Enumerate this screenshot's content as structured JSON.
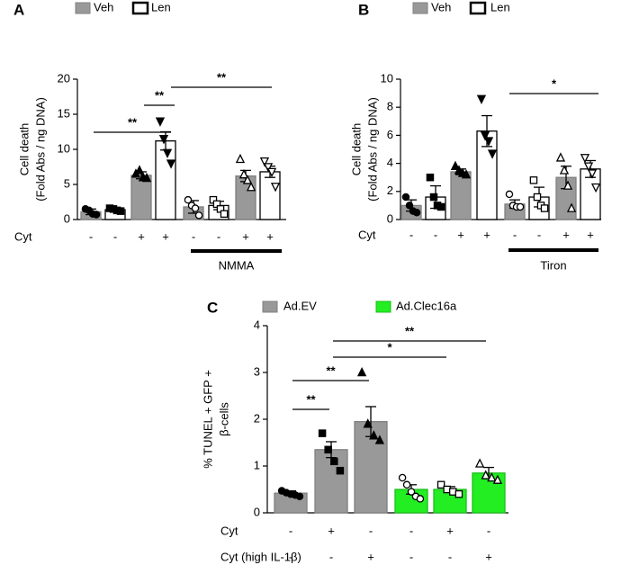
{
  "chart_data": [
    {
      "type": "bar",
      "panel": "A",
      "ylabel": [
        "Cell death",
        "(Fold Abs / ng DNA)"
      ],
      "ylim": [
        0,
        20
      ],
      "yticks": [
        0,
        5,
        10,
        15,
        20
      ],
      "categories": [
        null,
        null,
        null,
        null,
        null,
        null,
        null,
        null
      ],
      "series": [
        {
          "name": "Veh",
          "color": "#999999",
          "edgecolor": "#808080",
          "values": [
            1.1,
            null,
            6.3,
            null,
            1.8,
            null,
            6.2,
            null
          ],
          "errors": [
            0.4,
            null,
            0.5,
            null,
            0.9,
            null,
            0.8,
            null
          ],
          "points": [
            [
              1.5,
              1.3,
              0.8,
              0.7
            ],
            null,
            [
              6.5,
              7.0,
              6.0,
              5.9
            ],
            null,
            [
              2.8,
              2.0,
              1.6,
              0.6
            ],
            null,
            [
              8.6,
              6.4,
              5.6,
              4.6
            ],
            null
          ]
        },
        {
          "name": "Len",
          "color": "#ffffff",
          "edgecolor": "#000000",
          "values": [
            null,
            1.4,
            null,
            11.2,
            null,
            2.0,
            null,
            6.8
          ],
          "errors": [
            null,
            0.2,
            null,
            1.3,
            null,
            0.6,
            null,
            0.8
          ],
          "points": [
            null,
            [
              1.6,
              1.5,
              1.3,
              1.2
            ],
            null,
            [
              14.0,
              11.5,
              9.5,
              8.0
            ],
            null,
            [
              2.8,
              2.2,
              1.5,
              0.8
            ],
            null,
            [
              8.3,
              7.5,
              6.8,
              4.7
            ]
          ]
        }
      ],
      "rows": [
        {
          "label": "Cyt",
          "values": [
            "-",
            "-",
            "+",
            "+",
            "-",
            "-",
            "+",
            "+"
          ]
        }
      ],
      "group_label": "NMMA",
      "annotations": [
        "**",
        "**",
        "**"
      ]
    },
    {
      "type": "bar",
      "panel": "B",
      "ylabel": [
        "Cell death",
        "(Fold Abs / ng DNA)"
      ],
      "ylim": [
        0,
        10
      ],
      "yticks": [
        0,
        2,
        4,
        6,
        8,
        10
      ],
      "categories": [
        null,
        null,
        null,
        null,
        null,
        null,
        null,
        null
      ],
      "series": [
        {
          "name": "Veh",
          "color": "#999999",
          "edgecolor": "#808080",
          "values": [
            1.0,
            null,
            3.4,
            null,
            1.1,
            null,
            3.0,
            null
          ],
          "errors": [
            0.4,
            null,
            0.2,
            null,
            0.3,
            null,
            0.8,
            null
          ],
          "points": [
            [
              1.6,
              1.0,
              0.6,
              0.5
            ],
            null,
            [
              3.8,
              3.5,
              3.3,
              3.2
            ],
            null,
            [
              1.8,
              1.0,
              0.9,
              0.9
            ],
            null,
            [
              4.4,
              3.5,
              2.4,
              0.8
            ],
            null
          ]
        },
        {
          "name": "Len",
          "color": "#ffffff",
          "edgecolor": "#000000",
          "values": [
            null,
            1.6,
            null,
            6.3,
            null,
            1.6,
            null,
            3.6
          ],
          "errors": [
            null,
            0.8,
            null,
            1.1,
            null,
            0.7,
            null,
            0.6
          ],
          "points": [
            null,
            [
              3.0,
              1.6,
              1.0,
              0.9
            ],
            null,
            [
              8.6,
              6.0,
              5.6,
              4.7
            ],
            null,
            [
              2.8,
              1.6,
              1.0,
              0.8
            ],
            null,
            [
              4.4,
              3.8,
              3.3,
              2.3
            ]
          ]
        }
      ],
      "rows": [
        {
          "label": "Cyt",
          "values": [
            "-",
            "-",
            "+",
            "+",
            "-",
            "-",
            "+",
            "+"
          ]
        }
      ],
      "group_label": "Tiron",
      "annotations": [
        "*"
      ]
    },
    {
      "type": "bar",
      "panel": "C",
      "ylabel": [
        "% TUNEL + GFP +",
        "β-cells"
      ],
      "ylim": [
        0,
        4
      ],
      "yticks": [
        0,
        1,
        2,
        3,
        4
      ],
      "categories": [
        null,
        null,
        null,
        null,
        null,
        null
      ],
      "series": [
        {
          "name": "Ad.EV",
          "color": "#999999",
          "edgecolor": "#808080",
          "values": [
            0.42,
            1.35,
            1.95,
            null,
            null,
            null
          ],
          "errors": [
            0.05,
            0.17,
            0.32,
            null,
            null,
            null
          ],
          "points": [
            [
              0.47,
              0.43,
              0.4,
              0.38,
              0.35
            ],
            [
              1.7,
              1.35,
              1.1,
              0.9
            ],
            [
              3.0,
              1.9,
              1.65,
              1.55
            ],
            null,
            null,
            null
          ]
        },
        {
          "name": "Ad.Clec16a",
          "color": "#22ee22",
          "edgecolor": "#1bbf1b",
          "values": [
            null,
            null,
            null,
            0.5,
            0.5,
            0.85
          ],
          "errors": [
            null,
            null,
            null,
            0.1,
            0.06,
            0.12
          ],
          "points": [
            null,
            null,
            null,
            [
              0.75,
              0.6,
              0.45,
              0.35,
              0.3
            ],
            [
              0.6,
              0.5,
              0.45,
              0.4
            ],
            [
              1.05,
              0.8,
              0.75,
              0.7
            ]
          ]
        }
      ],
      "rows": [
        {
          "label": "Cyt",
          "values": [
            "-",
            "+",
            "-",
            "-",
            "+",
            "-"
          ]
        },
        {
          "label": "Cyt (high IL-1β)",
          "values": [
            "-",
            "-",
            "+",
            "-",
            "-",
            "+"
          ]
        }
      ],
      "annotations": [
        "**",
        "**",
        "*",
        "**"
      ]
    }
  ]
}
